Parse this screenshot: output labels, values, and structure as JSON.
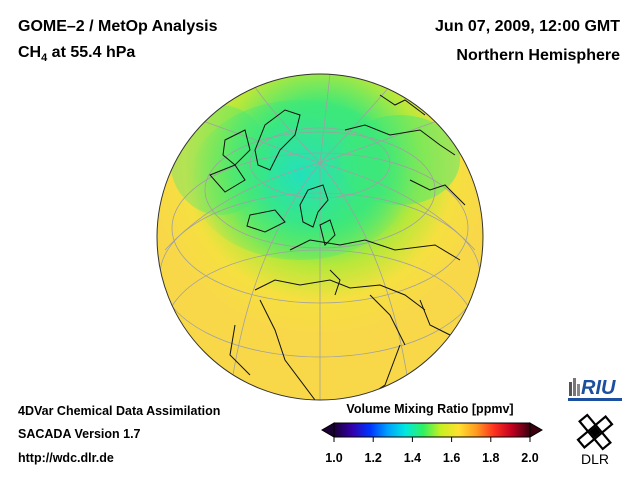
{
  "header": {
    "title": "GOME–2 / MetOp Analysis",
    "species_base": "CH",
    "species_sub": "4",
    "species_rest": " at 55.4 hPa",
    "date": "Jun 07, 2009, 12:00 GMT",
    "region": "Northern Hemisphere"
  },
  "footer": {
    "line1": "4DVar Chemical Data Assimilation",
    "line2": "SACADA Version 1.7",
    "line3": "http://wdc.dlr.de"
  },
  "colorbar": {
    "title": "Volume Mixing Ratio [ppmv]",
    "min": 1.0,
    "max": 2.0,
    "ticks": [
      "1.0",
      "1.2",
      "1.4",
      "1.6",
      "1.8",
      "2.0"
    ],
    "colors": [
      "#1a0033",
      "#3300aa",
      "#0033ff",
      "#00a0ff",
      "#00e8e0",
      "#30f060",
      "#c8f020",
      "#ffe030",
      "#ff9a20",
      "#ff3020",
      "#c00020",
      "#3a0010"
    ]
  },
  "map": {
    "projection": "orthographic",
    "center_latitude": 60,
    "center_longitude": 0,
    "low_color": "#3ce87a",
    "mid_color": "#b8e83a",
    "high_color": "#f6e040"
  },
  "logos": {
    "riu": "RIU",
    "dlr": "DLR"
  }
}
